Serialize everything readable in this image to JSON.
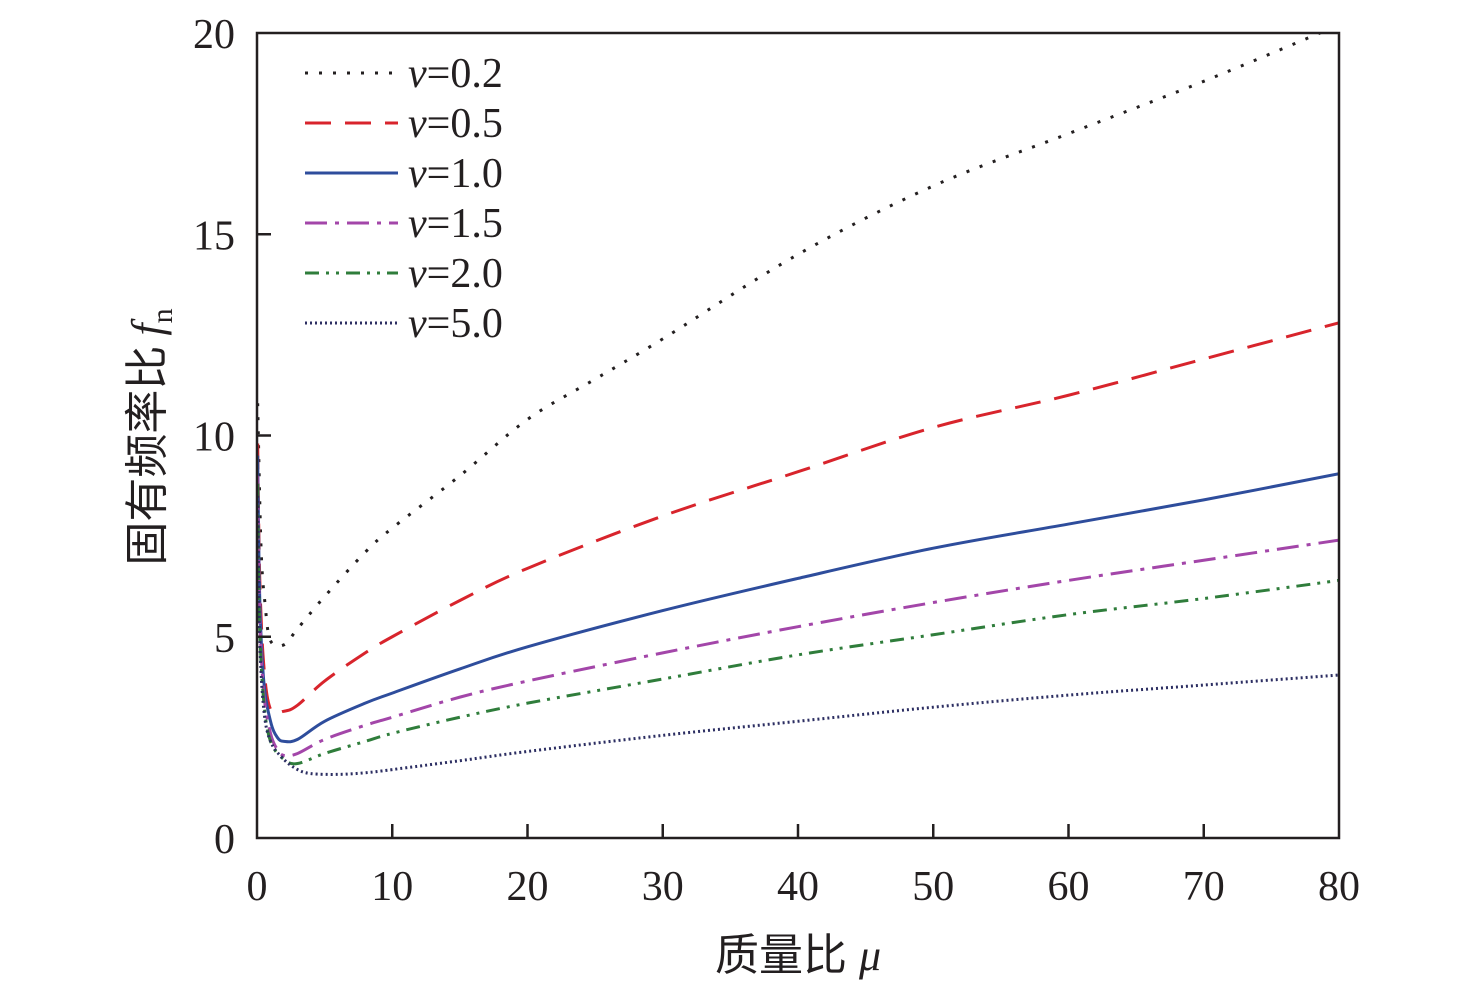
{
  "chart_data": {
    "type": "line",
    "xlabel": "质量比",
    "xlabel_symbol": "μ",
    "ylabel": "固有频率比",
    "ylabel_symbol": "f",
    "ylabel_subscript": "n",
    "xlim": [
      0,
      80
    ],
    "ylim": [
      0,
      20
    ],
    "xticks": [
      0,
      10,
      20,
      30,
      40,
      50,
      60,
      70,
      80
    ],
    "yticks": [
      0,
      5,
      10,
      15,
      20
    ],
    "legend_position": "top-left",
    "grid": false,
    "series": [
      {
        "name": "v=0.2",
        "symbol": "v",
        "value_label": "=0.2",
        "color": "#231f20",
        "dash": "3 11",
        "width": 3,
        "points": [
          [
            0.05,
            10.8
          ],
          [
            0.3,
            7.2
          ],
          [
            0.6,
            5.8
          ],
          [
            1,
            4.9
          ],
          [
            2,
            4.8
          ],
          [
            3,
            5.2
          ],
          [
            5,
            6.0
          ],
          [
            8,
            7.1
          ],
          [
            10,
            7.7
          ],
          [
            15,
            9.0
          ],
          [
            20,
            10.4
          ],
          [
            25,
            11.4
          ],
          [
            30,
            12.4
          ],
          [
            40,
            14.5
          ],
          [
            50,
            16.2
          ],
          [
            60,
            17.5
          ],
          [
            70,
            18.8
          ],
          [
            80,
            20.2
          ]
        ]
      },
      {
        "name": "v=0.5",
        "symbol": "v",
        "value_label": "=0.5",
        "color": "#d8242c",
        "dash": "26 14",
        "width": 3,
        "points": [
          [
            0.05,
            9.8
          ],
          [
            0.2,
            6.5
          ],
          [
            0.5,
            4.3
          ],
          [
            1,
            3.2
          ],
          [
            2,
            3.15
          ],
          [
            3,
            3.3
          ],
          [
            5,
            3.9
          ],
          [
            8,
            4.6
          ],
          [
            10,
            5.0
          ],
          [
            15,
            5.9
          ],
          [
            20,
            6.7
          ],
          [
            30,
            8.0
          ],
          [
            40,
            9.1
          ],
          [
            50,
            10.2
          ],
          [
            60,
            11.0
          ],
          [
            70,
            11.9
          ],
          [
            80,
            12.8
          ]
        ]
      },
      {
        "name": "v=1.0",
        "symbol": "v",
        "value_label": "=1.0",
        "color": "#2e4d9c",
        "dash": "",
        "width": 3,
        "points": [
          [
            0.05,
            9.5
          ],
          [
            0.2,
            6.0
          ],
          [
            0.5,
            3.9
          ],
          [
            1,
            2.9
          ],
          [
            1.5,
            2.5
          ],
          [
            2,
            2.4
          ],
          [
            3,
            2.45
          ],
          [
            5,
            2.9
          ],
          [
            8,
            3.35
          ],
          [
            10,
            3.6
          ],
          [
            15,
            4.2
          ],
          [
            20,
            4.75
          ],
          [
            30,
            5.65
          ],
          [
            40,
            6.45
          ],
          [
            50,
            7.2
          ],
          [
            60,
            7.8
          ],
          [
            70,
            8.4
          ],
          [
            80,
            9.05
          ]
        ]
      },
      {
        "name": "v=1.5",
        "symbol": "v",
        "value_label": "=1.5",
        "color": "#a346a9",
        "dash": "22 8 4 8",
        "width": 3,
        "points": [
          [
            0.05,
            9.0
          ],
          [
            0.2,
            5.6
          ],
          [
            0.5,
            3.6
          ],
          [
            1,
            2.6
          ],
          [
            1.5,
            2.2
          ],
          [
            2,
            2.05
          ],
          [
            3,
            2.1
          ],
          [
            5,
            2.45
          ],
          [
            8,
            2.8
          ],
          [
            10,
            3.0
          ],
          [
            15,
            3.5
          ],
          [
            20,
            3.9
          ],
          [
            30,
            4.6
          ],
          [
            40,
            5.25
          ],
          [
            50,
            5.85
          ],
          [
            60,
            6.4
          ],
          [
            70,
            6.9
          ],
          [
            80,
            7.4
          ]
        ]
      },
      {
        "name": "v=2.0",
        "symbol": "v",
        "value_label": "=2.0",
        "color": "#2f7d3b",
        "dash": "14 7 3 7 3 7",
        "width": 3,
        "points": [
          [
            0.05,
            8.8
          ],
          [
            0.2,
            5.3
          ],
          [
            0.5,
            3.4
          ],
          [
            1,
            2.4
          ],
          [
            2,
            1.95
          ],
          [
            3,
            1.85
          ],
          [
            5,
            2.1
          ],
          [
            8,
            2.4
          ],
          [
            10,
            2.6
          ],
          [
            15,
            3.0
          ],
          [
            20,
            3.35
          ],
          [
            30,
            3.95
          ],
          [
            40,
            4.55
          ],
          [
            50,
            5.05
          ],
          [
            60,
            5.55
          ],
          [
            70,
            5.95
          ],
          [
            80,
            6.4
          ]
        ]
      },
      {
        "name": "v=5.0",
        "symbol": "v",
        "value_label": "=5.0",
        "color": "#2c2e62",
        "dash": "2 3",
        "width": 3,
        "points": [
          [
            0.05,
            8.5
          ],
          [
            0.2,
            5.0
          ],
          [
            0.5,
            3.2
          ],
          [
            1,
            2.4
          ],
          [
            2,
            1.95
          ],
          [
            3,
            1.7
          ],
          [
            4,
            1.6
          ],
          [
            6,
            1.58
          ],
          [
            8,
            1.62
          ],
          [
            10,
            1.7
          ],
          [
            15,
            1.92
          ],
          [
            20,
            2.15
          ],
          [
            30,
            2.55
          ],
          [
            40,
            2.9
          ],
          [
            50,
            3.25
          ],
          [
            60,
            3.55
          ],
          [
            70,
            3.8
          ],
          [
            80,
            4.05
          ]
        ]
      }
    ]
  }
}
